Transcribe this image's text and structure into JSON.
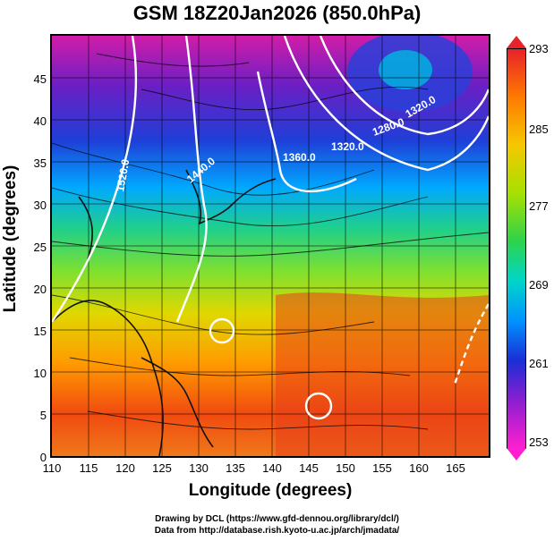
{
  "title": "GSM 18Z20Jan2026 (850.0hPa)",
  "axes": {
    "xlabel": "Longitude (degrees)",
    "ylabel": "Latitude  (degrees)",
    "xticks": [
      "110",
      "115",
      "120",
      "125",
      "130",
      "135",
      "140",
      "145",
      "150",
      "155",
      "160",
      "165"
    ],
    "yticks": [
      "0",
      "5",
      "10",
      "15",
      "20",
      "25",
      "30",
      "35",
      "40",
      "45"
    ]
  },
  "colorbar": {
    "labels": [
      "293",
      "285",
      "277",
      "269",
      "261",
      "253"
    ],
    "colors": [
      "#e8222a",
      "#ff7a00",
      "#f5c800",
      "#a8e000",
      "#2ed34a",
      "#00d6c8",
      "#0094ff",
      "#1a2ed6",
      "#8a1fd0",
      "#ff1fd0"
    ]
  },
  "contour_labels": [
    "1520.0",
    "1440.0",
    "1360.0",
    "1320.0",
    "1280.0",
    "1320.0"
  ],
  "credits": {
    "line1": "Drawing by DCL (https://www.gfd-dennou.org/library/dcl/)",
    "line2": "Data from http://database.rish.kyoto-u.ac.jp/arch/jmadata/"
  }
}
